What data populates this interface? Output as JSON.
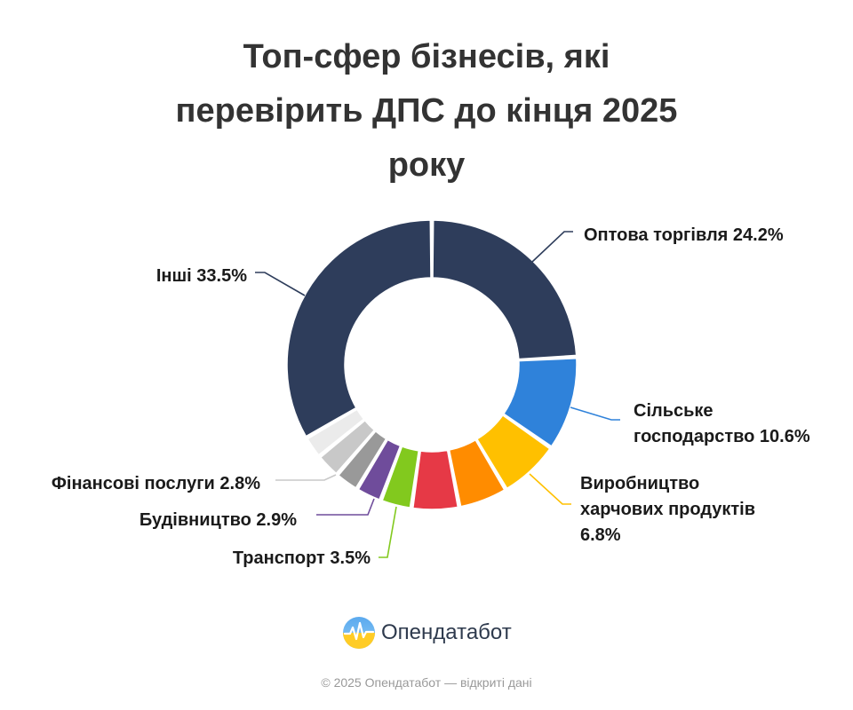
{
  "title_lines": [
    "Топ-сфер бізнесів, які",
    "перевірить ДПС до кінця 2025",
    "року"
  ],
  "chart_data": {
    "type": "pie",
    "variant": "donut",
    "title": "Топ-сфер бізнесів, які перевірить ДПС до кінця 2025 року",
    "unit": "%",
    "slices": [
      {
        "key": "wholesale",
        "value": 24.2,
        "color": "#2e3d5b",
        "label_lines": [
          "Оптова торгівля 24.2%"
        ]
      },
      {
        "key": "agriculture",
        "value": 10.6,
        "color": "#2f82da",
        "label_lines": [
          "Сільське",
          "господарство 10.6%"
        ]
      },
      {
        "key": "food",
        "value": 6.8,
        "color": "#ffc000",
        "label_lines": [
          "Виробництво",
          "харчових продуктів",
          "6.8%"
        ]
      },
      {
        "key": "orange",
        "value": 5.5,
        "color": "#ff8c00",
        "label_lines": []
      },
      {
        "key": "red",
        "value": 5.3,
        "color": "#e63946",
        "label_lines": []
      },
      {
        "key": "transport",
        "value": 3.5,
        "color": "#82c91e",
        "label_lines": [
          "Транспорт 3.5%"
        ]
      },
      {
        "key": "construction",
        "value": 2.9,
        "color": "#6f4c9b",
        "label_lines": [
          "Будівництво 2.9%"
        ]
      },
      {
        "key": "gray-dark",
        "value": 2.7,
        "color": "#999999",
        "label_lines": []
      },
      {
        "key": "finance",
        "value": 2.8,
        "color": "#c8c8c8",
        "label_lines": [
          "Фінансові послуги 2.8%"
        ]
      },
      {
        "key": "gray-light",
        "value": 2.5,
        "color": "#ebebeb",
        "label_lines": []
      },
      {
        "key": "other",
        "value": 33.5,
        "color": "#2e3d5b",
        "label_lines": [
          "Інші 33.5%"
        ]
      }
    ]
  },
  "brand": {
    "name": "Опендатабот",
    "icon": "opendatabot-logo-icon"
  },
  "footer": "© 2025 Опендатабот — відкриті дані"
}
